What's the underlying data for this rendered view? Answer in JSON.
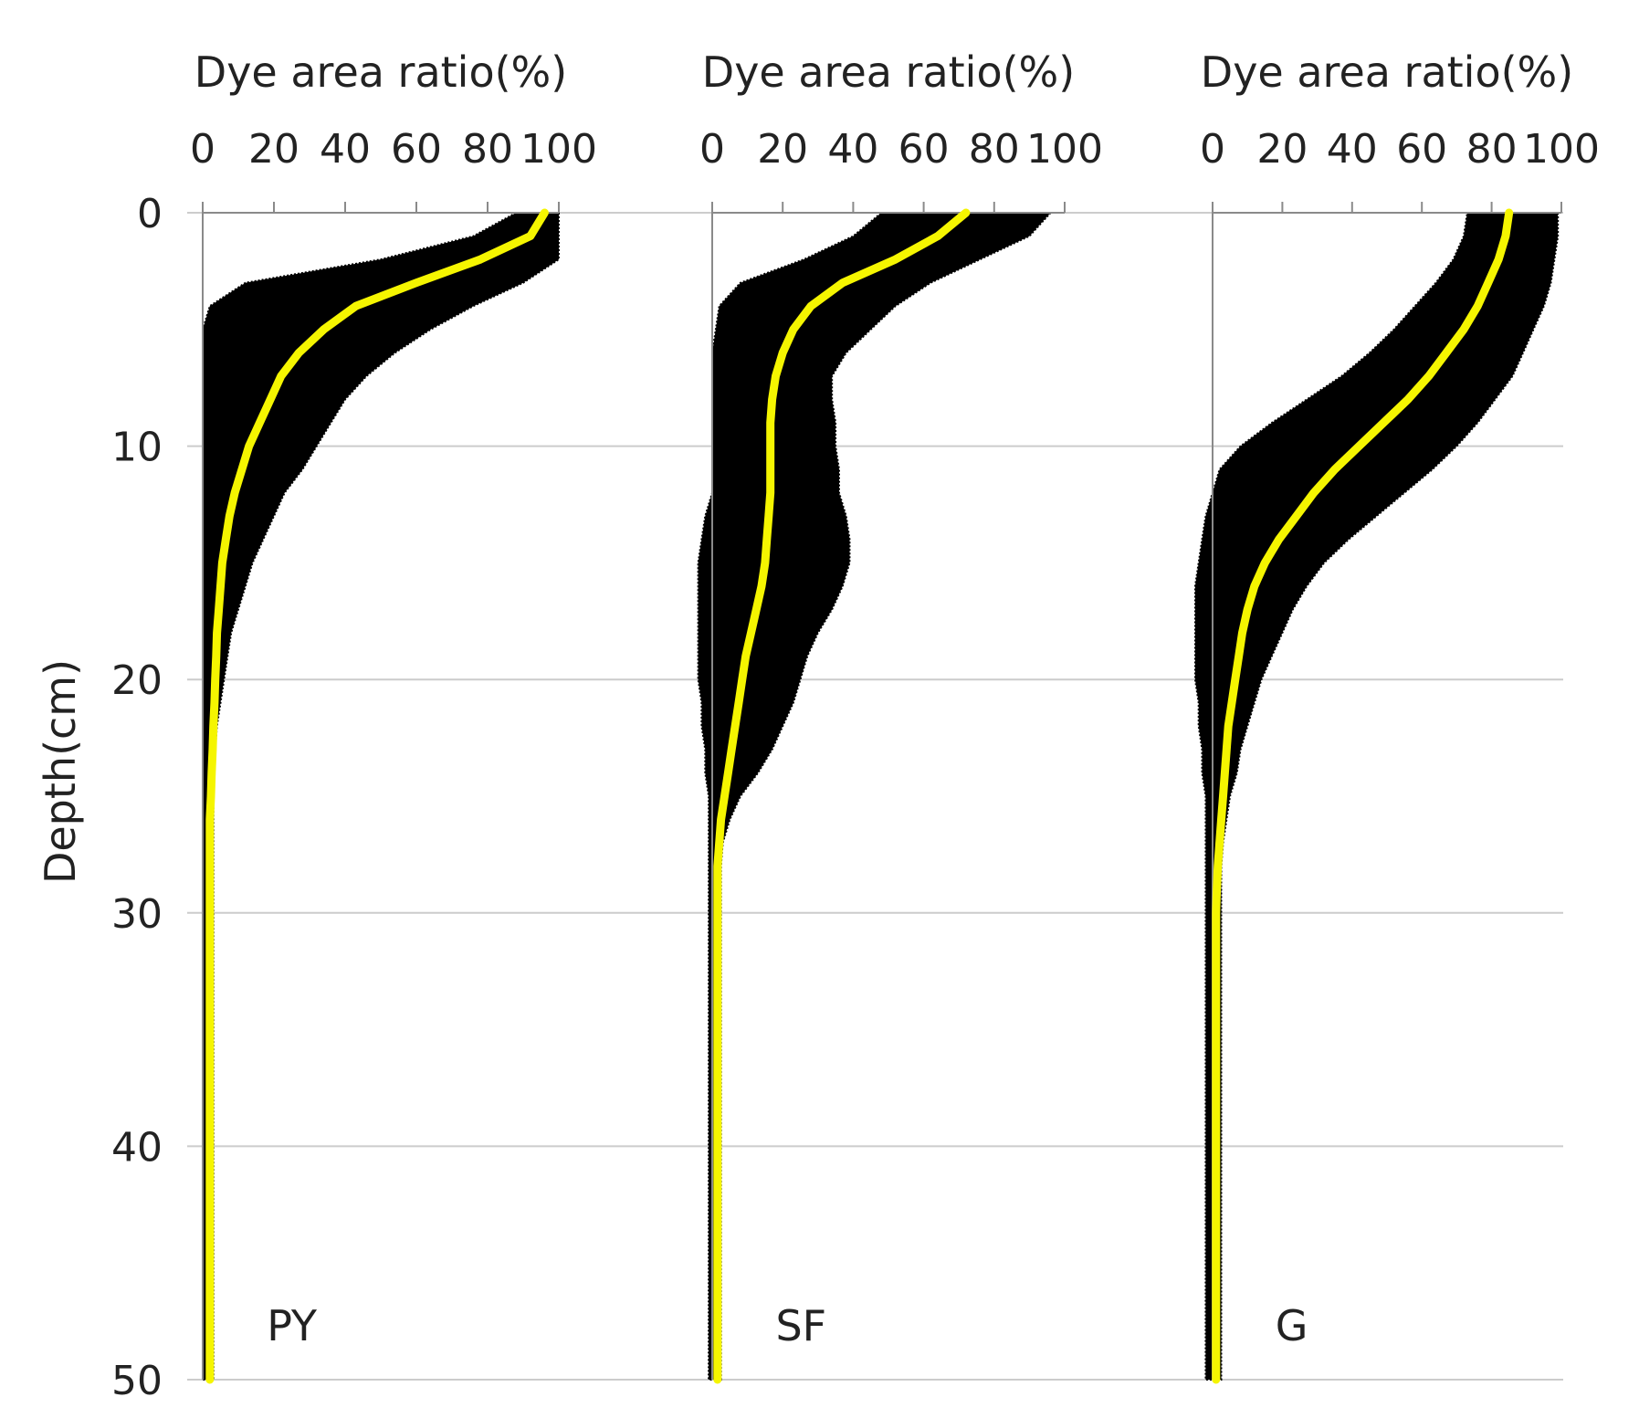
{
  "chart_data": {
    "type": "line",
    "ylabel": "Depth(cm)",
    "y_ticks": [
      "0",
      "10",
      "20",
      "30",
      "40",
      "50"
    ],
    "ylim": [
      0,
      50
    ],
    "y_reversed": true,
    "grid": true,
    "colors": {
      "mean_line": "#f5f500",
      "band": "#000000",
      "grid": "#cccccc",
      "axis": "#8a8a8a"
    },
    "panels": [
      {
        "label": "PY",
        "xlabel": "Dye area ratio(%)",
        "x_ticks": [
          "0",
          "20",
          "40",
          "60",
          "80",
          "100"
        ],
        "xlim": [
          0,
          100
        ],
        "depth": [
          0,
          1,
          2,
          3,
          4,
          5,
          6,
          7,
          8,
          9,
          10,
          11,
          12,
          13,
          14,
          15,
          16,
          17,
          18,
          19,
          20,
          21,
          22,
          23,
          24,
          25,
          26,
          28,
          30,
          35,
          40,
          45,
          50
        ],
        "mean": [
          96,
          92,
          78,
          60,
          43,
          34,
          27,
          22,
          19,
          16,
          13,
          11,
          9,
          7.5,
          6.5,
          5.5,
          5,
          4.5,
          4,
          3.8,
          3.5,
          3.3,
          3,
          2.8,
          2.5,
          2.3,
          2,
          2,
          2,
          2,
          2,
          2,
          2
        ],
        "lower": [
          88,
          76,
          50,
          12,
          2,
          0,
          0,
          0,
          0,
          0,
          0,
          0,
          0,
          0,
          0,
          0,
          0,
          0,
          0,
          0,
          0,
          0,
          0,
          0,
          0,
          0,
          0,
          0,
          0,
          0,
          0,
          0,
          0
        ],
        "upper": [
          100,
          100,
          100,
          90,
          76,
          64,
          54,
          46,
          40,
          36,
          32,
          28,
          23,
          20,
          17,
          14,
          12,
          10,
          8,
          7,
          6,
          5,
          4,
          3.5,
          3,
          3,
          3,
          3,
          3,
          3,
          3,
          3,
          3
        ]
      },
      {
        "label": "SF",
        "xlabel": "Dye area ratio(%)",
        "x_ticks": [
          "0",
          "20",
          "40",
          "60",
          "80",
          "100"
        ],
        "xlim": [
          0,
          100
        ],
        "depth": [
          0,
          1,
          2,
          3,
          4,
          5,
          6,
          7,
          8,
          9,
          10,
          11,
          12,
          13,
          14,
          15,
          16,
          17,
          18,
          19,
          20,
          21,
          22,
          23,
          24,
          25,
          26,
          27,
          28,
          30,
          35,
          40,
          45,
          50
        ],
        "mean": [
          72,
          64,
          52,
          37,
          28,
          23,
          20,
          18,
          17,
          16.5,
          16.5,
          16.5,
          16.5,
          16,
          15.5,
          15,
          14,
          12.5,
          11,
          9.5,
          8.5,
          7.5,
          6.5,
          5.5,
          4.5,
          3.5,
          2.5,
          2,
          1.5,
          1.5,
          1.5,
          1.5,
          1.5,
          1.5
        ],
        "lower": [
          48,
          40,
          26,
          8,
          2,
          1,
          0,
          0,
          0,
          0,
          0,
          0,
          0,
          -2,
          -3,
          -4,
          -4,
          -4,
          -4,
          -4,
          -4,
          -3,
          -3,
          -2,
          -2,
          -1,
          -1,
          -1,
          -1,
          -1,
          -1,
          -1,
          -1,
          -1
        ],
        "upper": [
          96,
          90,
          76,
          62,
          52,
          45,
          38,
          34,
          34,
          35,
          35,
          36,
          36,
          38,
          39,
          39,
          37,
          34,
          30,
          27,
          25,
          23,
          20,
          17,
          13,
          8,
          5,
          3,
          2.5,
          2.5,
          2.5,
          2.5,
          2.5,
          2.5
        ]
      },
      {
        "label": "G",
        "xlabel": "Dye area ratio(%)",
        "x_ticks": [
          "0",
          "20",
          "40",
          "60",
          "80",
          "100"
        ],
        "xlim": [
          0,
          100
        ],
        "depth": [
          0,
          1,
          2,
          3,
          4,
          5,
          6,
          7,
          8,
          9,
          10,
          11,
          12,
          13,
          14,
          15,
          16,
          17,
          18,
          19,
          20,
          21,
          22,
          23,
          24,
          25,
          26,
          27,
          28,
          29,
          30,
          35,
          40,
          45,
          50
        ],
        "mean": [
          85,
          84,
          82,
          79,
          76,
          72,
          67,
          62,
          56,
          49,
          42,
          35,
          29,
          24,
          19,
          15,
          12,
          10,
          8.5,
          7.5,
          6.5,
          5.5,
          4.5,
          4,
          3.5,
          3,
          2.5,
          2,
          1.5,
          1.2,
          1,
          1,
          1,
          1,
          1
        ],
        "lower": [
          73,
          72,
          69,
          64,
          58,
          52,
          45,
          37,
          27,
          17,
          8,
          2,
          0,
          -2,
          -3,
          -4,
          -5,
          -5,
          -5,
          -5,
          -5,
          -4,
          -4,
          -3,
          -3,
          -2,
          -2,
          -2,
          -2,
          -2,
          -2,
          -2,
          -2,
          -2,
          -2
        ],
        "upper": [
          99,
          99,
          98,
          97,
          95,
          92,
          89,
          86,
          81,
          76,
          70,
          63,
          55,
          47,
          39,
          32,
          27,
          23,
          20,
          17,
          14,
          12,
          10,
          8,
          7,
          5,
          4,
          3,
          2.5,
          2.5,
          2.5,
          2.5,
          2.5,
          2.5,
          2.5
        ]
      }
    ]
  }
}
